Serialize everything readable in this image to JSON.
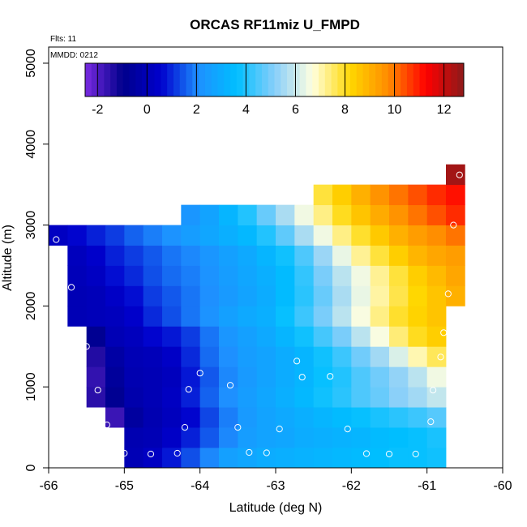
{
  "chart_data": {
    "type": "heatmap",
    "title": "ORCAS RF11miz U_FMPD",
    "annotations": [
      "Flts: 11",
      "MMDD: 0212"
    ],
    "xlabel": "Latitude (deg N)",
    "ylabel": "Altitude (m)",
    "xlim": [
      -66,
      -60
    ],
    "ylim": [
      0,
      5200
    ],
    "x_ticks": [
      -66,
      -65,
      -64,
      -63,
      -62,
      -61,
      -60
    ],
    "y_ticks": [
      0,
      1000,
      2000,
      3000,
      4000,
      5000
    ],
    "grid": false,
    "legend": "colorbar top",
    "colorbar": {
      "range": [
        -2.5,
        12.8
      ],
      "ticks": [
        -2,
        0,
        2,
        4,
        6,
        8,
        10,
        12
      ],
      "colors": [
        "#7a2be2",
        "#00008b",
        "#0000cd",
        "#1e90ff",
        "#00bfff",
        "#87cefa",
        "#ffffe0",
        "#ffd700",
        "#ff8c00",
        "#ff0000",
        "#8b1a1a"
      ]
    },
    "cell": {
      "dlat": 0.25,
      "dalt": 250
    },
    "grid_origin": {
      "lat": -66,
      "alt": 0
    },
    "rows": [
      {
        "alt": 0,
        "start": 4,
        "values": [
          0.0,
          0.3,
          0.8,
          1.4,
          2.0,
          2.6,
          2.8,
          3.0,
          3.1,
          3.2,
          3.3,
          3.4,
          3.5,
          3.6,
          3.7,
          3.7,
          3.8
        ]
      },
      {
        "alt": 250,
        "start": 4,
        "values": [
          -0.1,
          0.0,
          0.4,
          0.9,
          1.5,
          2.0,
          2.5,
          2.7,
          2.8,
          3.0,
          3.1,
          3.2,
          3.3,
          3.5,
          3.6,
          3.7,
          3.9
        ]
      },
      {
        "alt": 500,
        "start": 3,
        "values": [
          -1.7,
          -0.5,
          -0.1,
          0.2,
          0.6,
          1.3,
          1.9,
          2.4,
          2.7,
          2.9,
          3.1,
          3.3,
          3.5,
          3.7,
          3.9,
          4.1,
          4.3,
          4.6
        ]
      },
      {
        "alt": 750,
        "start": 2,
        "values": [
          -1.5,
          -0.8,
          -0.2,
          0.0,
          0.3,
          0.9,
          1.6,
          2.1,
          2.5,
          2.8,
          3.1,
          3.4,
          3.8,
          4.1,
          4.5,
          4.8,
          5.2,
          5.5,
          5.9
        ]
      },
      {
        "alt": 1000,
        "start": 2,
        "values": [
          -1.6,
          -0.6,
          -0.1,
          0.0,
          0.2,
          0.8,
          1.5,
          2.0,
          2.4,
          2.7,
          3.0,
          3.3,
          3.7,
          4.0,
          4.5,
          4.9,
          5.3,
          5.8,
          6.5
        ]
      },
      {
        "alt": 1250,
        "start": 2,
        "values": [
          -1.4,
          -0.4,
          0.0,
          0.1,
          0.4,
          1.0,
          1.7,
          2.1,
          2.5,
          2.7,
          3.0,
          3.3,
          3.8,
          4.3,
          4.9,
          5.5,
          6.2,
          7.0,
          7.6
        ]
      },
      {
        "alt": 1500,
        "start": 2,
        "values": [
          -0.8,
          0.0,
          0.2,
          0.6,
          0.8,
          1.2,
          1.8,
          2.3,
          2.6,
          2.9,
          3.3,
          3.8,
          4.4,
          5.0,
          5.8,
          6.6,
          7.4,
          8.0,
          8.4
        ]
      },
      {
        "alt": 1750,
        "start": 1,
        "values": [
          0.0,
          0.1,
          0.2,
          0.5,
          1.0,
          1.4,
          1.8,
          2.2,
          2.6,
          2.9,
          3.1,
          3.7,
          4.3,
          5.0,
          5.8,
          6.6,
          7.3,
          7.9,
          8.3,
          8.6
        ]
      },
      {
        "alt": 2000,
        "start": 1,
        "values": [
          0.0,
          0.1,
          0.4,
          0.7,
          1.2,
          1.5,
          1.8,
          2.1,
          2.4,
          2.7,
          3.0,
          3.5,
          4.1,
          4.8,
          5.6,
          6.4,
          7.1,
          7.7,
          8.2,
          8.6,
          9.0
        ]
      },
      {
        "alt": 2250,
        "start": 1,
        "values": [
          0.1,
          0.3,
          0.7,
          1.0,
          1.4,
          1.7,
          1.9,
          2.2,
          2.5,
          2.8,
          3.1,
          3.5,
          4.2,
          5.0,
          5.8,
          6.5,
          7.2,
          7.8,
          8.4,
          8.8,
          9.2
        ]
      },
      {
        "alt": 2500,
        "start": 1,
        "values": [
          0.2,
          0.5,
          0.9,
          1.2,
          1.5,
          1.8,
          2.0,
          2.3,
          2.6,
          2.9,
          3.3,
          3.8,
          4.5,
          5.4,
          6.4,
          7.2,
          7.8,
          8.4,
          8.9,
          9.2,
          9.4
        ]
      },
      {
        "alt": 2750,
        "start": 0,
        "values": [
          0.3,
          0.6,
          0.9,
          1.2,
          1.6,
          1.9,
          2.2,
          2.5,
          2.8,
          3.1,
          3.4,
          4.0,
          4.7,
          5.6,
          6.5,
          7.3,
          7.9,
          8.5,
          9.0,
          9.4,
          9.7,
          10.0
        ]
      },
      {
        "alt": 3000,
        "start": 7,
        "values": [
          2.3,
          2.7,
          3.3,
          4.0,
          4.8,
          5.6,
          6.5,
          7.3,
          8.0,
          8.6,
          9.1,
          9.6,
          10.0,
          10.4,
          10.8
        ]
      },
      {
        "alt": 3250,
        "start": 14,
        "values": [
          7.8,
          8.4,
          9.0,
          9.6,
          10.0,
          10.4,
          10.8,
          11.1
        ]
      },
      {
        "alt": 3500,
        "start": 21,
        "values": [
          12.5
        ]
      }
    ],
    "points": [
      {
        "lat": -65.0,
        "alt": 180
      },
      {
        "lat": -64.65,
        "alt": 170
      },
      {
        "lat": -64.3,
        "alt": 180
      },
      {
        "lat": -63.35,
        "alt": 190
      },
      {
        "lat": -63.12,
        "alt": 185
      },
      {
        "lat": -61.8,
        "alt": 175
      },
      {
        "lat": -61.5,
        "alt": 170
      },
      {
        "lat": -61.15,
        "alt": 170
      },
      {
        "lat": -65.23,
        "alt": 530
      },
      {
        "lat": -64.2,
        "alt": 500
      },
      {
        "lat": -63.5,
        "alt": 500
      },
      {
        "lat": -62.95,
        "alt": 480
      },
      {
        "lat": -62.05,
        "alt": 480
      },
      {
        "lat": -60.95,
        "alt": 570
      },
      {
        "lat": -65.35,
        "alt": 960
      },
      {
        "lat": -64.15,
        "alt": 970
      },
      {
        "lat": -63.6,
        "alt": 1020
      },
      {
        "lat": -64.0,
        "alt": 1170
      },
      {
        "lat": -62.65,
        "alt": 1120
      },
      {
        "lat": -62.28,
        "alt": 1130
      },
      {
        "lat": -62.72,
        "alt": 1320
      },
      {
        "lat": -60.92,
        "alt": 960
      },
      {
        "lat": -65.5,
        "alt": 1500
      },
      {
        "lat": -60.82,
        "alt": 1370
      },
      {
        "lat": -60.78,
        "alt": 1670
      },
      {
        "lat": -65.7,
        "alt": 2230
      },
      {
        "lat": -60.72,
        "alt": 2150
      },
      {
        "lat": -65.9,
        "alt": 2820
      },
      {
        "lat": -60.65,
        "alt": 3000
      },
      {
        "lat": -60.57,
        "alt": 3620
      }
    ]
  }
}
